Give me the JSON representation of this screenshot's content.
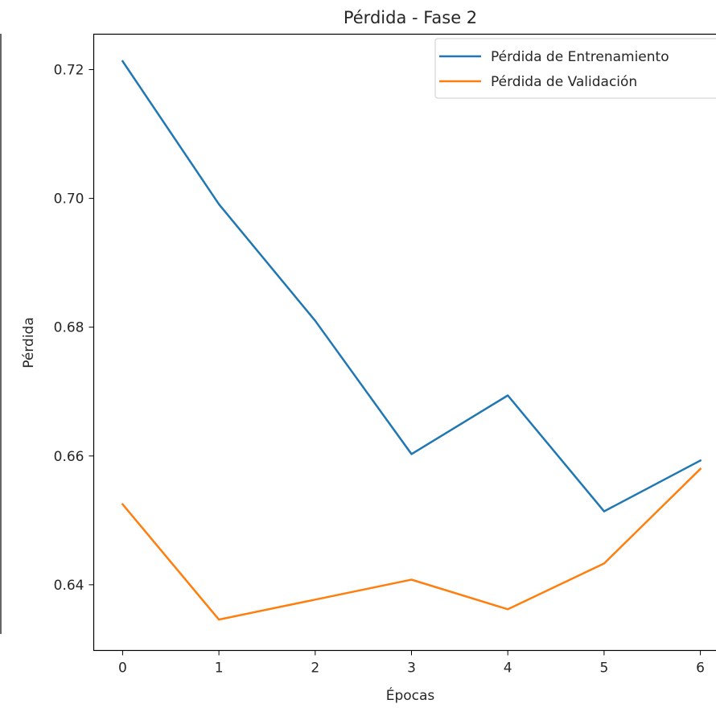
{
  "chart_data": {
    "type": "line",
    "title": "Pérdida - Fase 2",
    "xlabel": "Épocas",
    "ylabel": "Pérdida",
    "x": [
      0,
      1,
      2,
      3,
      4,
      5,
      6
    ],
    "x_ticks": [
      "0",
      "1",
      "2",
      "3",
      "4",
      "5",
      "6"
    ],
    "y_ticks": [
      "0.64",
      "0.66",
      "0.68",
      "0.70",
      "0.72"
    ],
    "y_tick_values": [
      0.64,
      0.66,
      0.68,
      0.7,
      0.72
    ],
    "xlim": [
      -0.3,
      6.3
    ],
    "ylim": [
      0.6298,
      0.7255
    ],
    "grid": false,
    "legend_position": "top-right",
    "series": [
      {
        "name": "Pérdida de Entrenamiento",
        "color": "#1f77b4",
        "values": [
          0.7213,
          0.6991,
          0.681,
          0.6603,
          0.6694,
          0.6514,
          0.6593
        ]
      },
      {
        "name": "Pérdida de Validación",
        "color": "#ff7f0e",
        "values": [
          0.6525,
          0.6346,
          0.6377,
          0.6408,
          0.6362,
          0.6433,
          0.658
        ]
      }
    ]
  }
}
